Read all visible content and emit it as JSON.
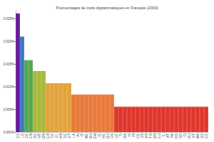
{
  "chart_data": {
    "type": "bar",
    "title": "Pourcentages de mots digrammatiques en Français (2003)",
    "categories": [
      "ES",
      "LE",
      "DE",
      "EN",
      "RE",
      "NT",
      "ON",
      "ER",
      "TE",
      "EL",
      "AN",
      "SE",
      "ET",
      "LA",
      "AI",
      "IT",
      "ME",
      "OU",
      "EM",
      "IE",
      "NE",
      "QU",
      "US",
      "UE",
      "TI",
      "RA",
      "IS",
      "IN",
      "CE",
      "UR",
      "AR",
      "TR",
      "OR",
      "EU",
      "IL",
      "AT",
      "PA",
      "CO",
      "NS",
      "DI",
      "AU",
      "ST",
      "MA",
      "SS",
      "EC"
    ],
    "values": [
      0.0262,
      0.0211,
      0.0159,
      0.0159,
      0.0135,
      0.0135,
      0.0135,
      0.0108,
      0.0108,
      0.0108,
      0.0108,
      0.0108,
      0.0108,
      0.0083,
      0.0083,
      0.0083,
      0.0083,
      0.0083,
      0.0083,
      0.0083,
      0.0083,
      0.0083,
      0.0083,
      0.0056,
      0.0056,
      0.0056,
      0.0056,
      0.0056,
      0.0056,
      0.0056,
      0.0056,
      0.0056,
      0.0056,
      0.0056,
      0.0056,
      0.0056,
      0.0056,
      0.0056,
      0.0056,
      0.0056,
      0.0056,
      0.0056,
      0.0056,
      0.0056,
      0.0056
    ],
    "colors": [
      "#6a1b9a",
      "#3a78c9",
      "#55a84f",
      "#55a84f",
      "#a8b83a",
      "#a8b83a",
      "#a8b83a",
      "#e3a23a",
      "#e3a23a",
      "#e3a23a",
      "#e3a23a",
      "#e3a23a",
      "#e3a23a",
      "#e8793a",
      "#e8793a",
      "#e8793a",
      "#e8793a",
      "#e8793a",
      "#e8793a",
      "#e8793a",
      "#e8793a",
      "#e8793a",
      "#e8793a",
      "#e0362c",
      "#e0362c",
      "#e0362c",
      "#e0362c",
      "#e0362c",
      "#e0362c",
      "#e0362c",
      "#e0362c",
      "#e0362c",
      "#e0362c",
      "#e0362c",
      "#e0362c",
      "#e0362c",
      "#e0362c",
      "#e0362c",
      "#e0362c",
      "#e0362c",
      "#e0362c",
      "#e0362c",
      "#e0362c",
      "#e0362c",
      "#e0362c"
    ],
    "ylim": [
      0,
      0.027
    ],
    "yticks": [
      {
        "value": 0,
        "label": "0.000%"
      },
      {
        "value": 0.005,
        "label": "0.005%"
      },
      {
        "value": 0.01,
        "label": "0.010%"
      },
      {
        "value": 0.015,
        "label": "0.015%"
      },
      {
        "value": 0.02,
        "label": "0.020%"
      },
      {
        "value": 0.025,
        "label": "0.025%"
      }
    ],
    "grid": false
  }
}
